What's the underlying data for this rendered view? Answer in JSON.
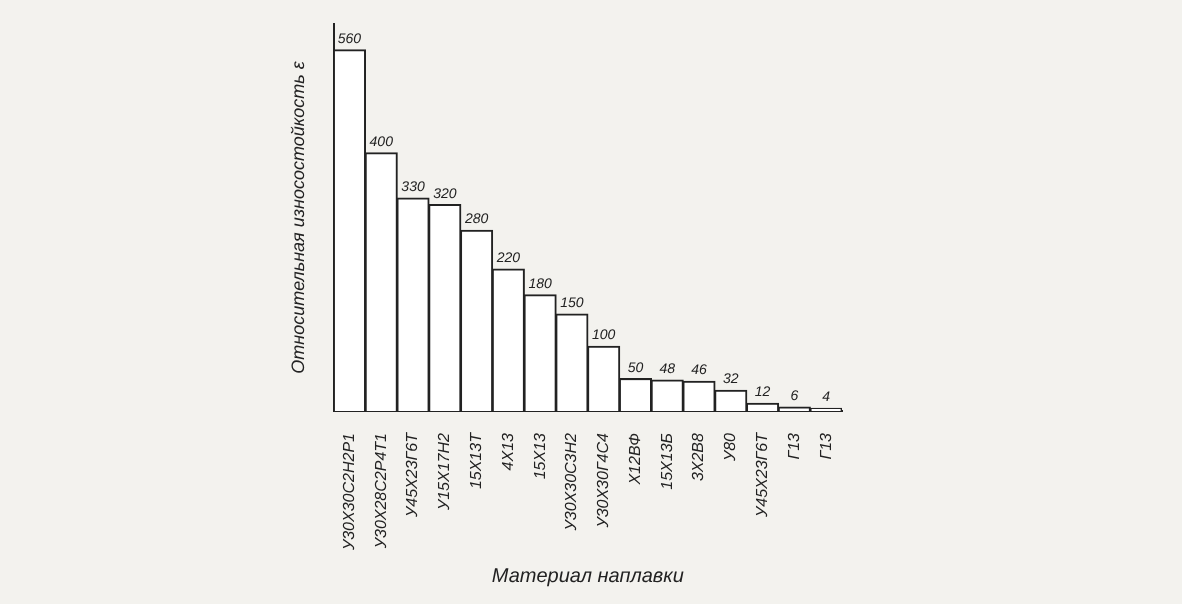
{
  "chart_data": {
    "type": "bar",
    "xlabel": "Материал наплавки",
    "ylabel": "Относительная износостойкость ε",
    "categories": [
      "У30Х30С2Н2Р1",
      "У30Х28С2Р4Т1",
      "У45Х23Г6Т",
      "У15Х17Н2",
      "15Х13Т",
      "4Х13",
      "15Х13",
      "У30Х30С3Н2",
      "У30Х30Г4С4",
      "Х12ВФ",
      "15Х13Б",
      "3Х2В8",
      "У80",
      "У45Х23Г6Т",
      "Г13",
      "Г13"
    ],
    "values": [
      560,
      400,
      330,
      320,
      280,
      220,
      180,
      150,
      100,
      50,
      48,
      46,
      32,
      12,
      6,
      4
    ],
    "color": "#ffffff",
    "data_labels": true,
    "grid": false,
    "legend": false
  }
}
